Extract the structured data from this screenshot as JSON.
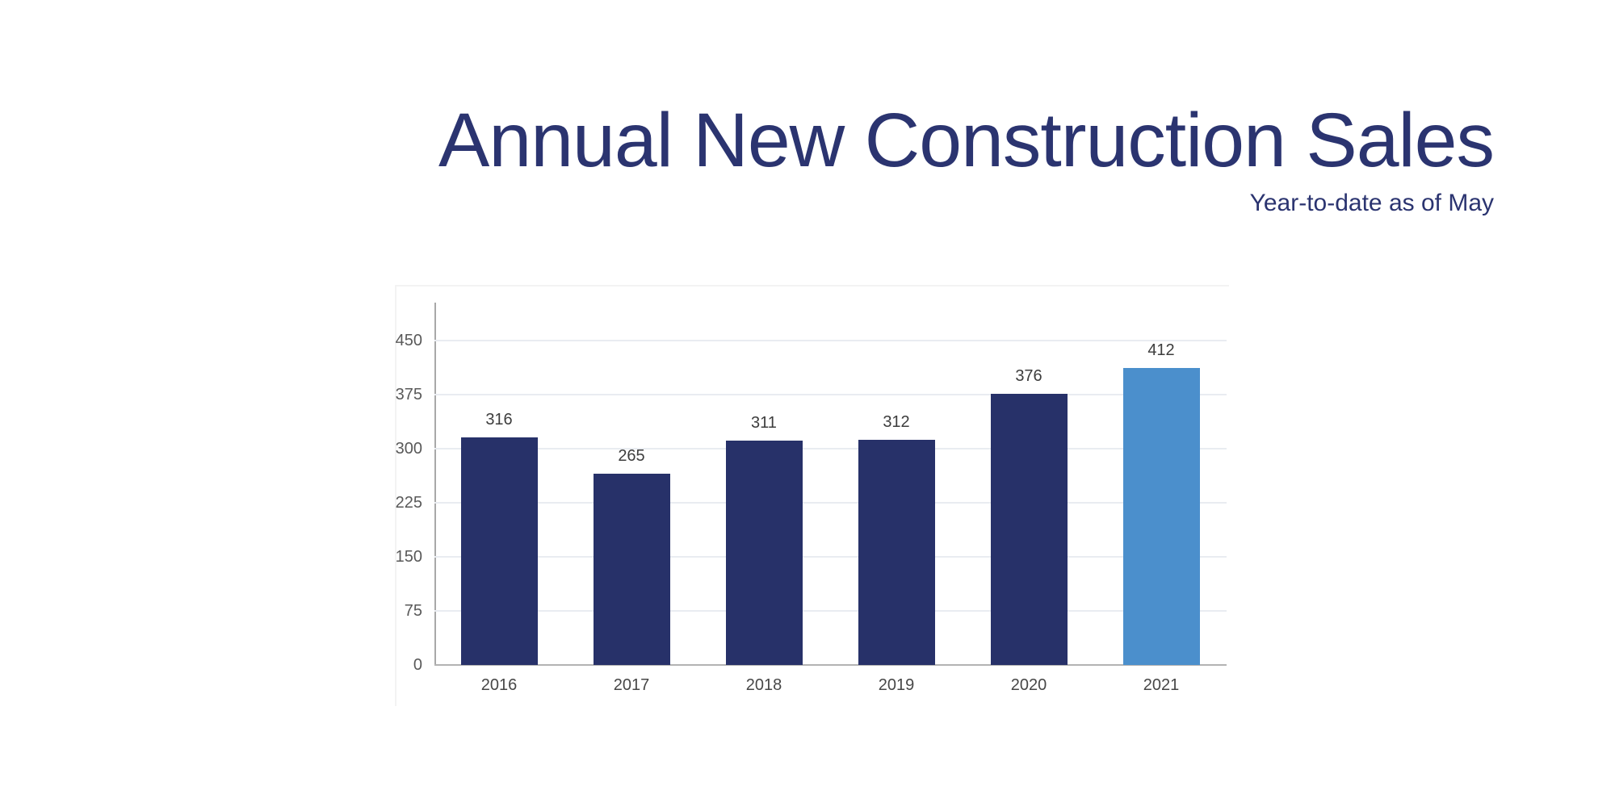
{
  "header": {
    "title": "Annual New Construction Sales",
    "subtitle": "Year-to-date as of May"
  },
  "colors": {
    "title_text": "#2b3470",
    "bar_default": "#273169",
    "bar_highlight": "#4b8fcc",
    "gridline": "#e9ecf1",
    "axis_spine": "#a8a8a8",
    "axis_baseline": "#b3b3b3",
    "y_tick_label": "#595959",
    "x_tick_label": "#474747",
    "value_label": "#3d3d3d"
  },
  "chart_data": {
    "type": "bar",
    "title": "Annual New Construction Sales",
    "subtitle": "Year-to-date as of May",
    "categories": [
      "2016",
      "2017",
      "2018",
      "2019",
      "2020",
      "2021"
    ],
    "values": [
      316,
      265,
      311,
      312,
      376,
      412
    ],
    "highlight_index": 5,
    "xlabel": "",
    "ylabel": "",
    "ylim": [
      0,
      450
    ],
    "yticks": [
      0,
      75,
      150,
      225,
      300,
      375,
      450
    ],
    "grid": true,
    "legend": false,
    "value_labels_shown": true
  }
}
